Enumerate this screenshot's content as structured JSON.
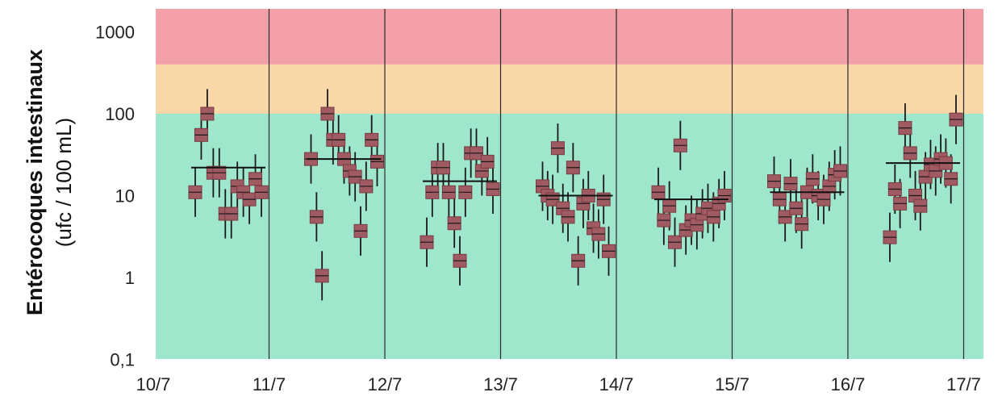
{
  "chart_data": {
    "type": "scatter",
    "title": "",
    "ylabel": "Entérocoques intestinaux",
    "ylabel_unit": "(ufc / 100 mL)",
    "xlabel": "",
    "y_scale": "log",
    "ylim": [
      0.1,
      2000
    ],
    "y_ticks": [
      0.1,
      1,
      10,
      100,
      1000
    ],
    "y_tick_labels": [
      "0,1",
      "1",
      "10",
      "100",
      "1000"
    ],
    "x_ticks": [
      "10/7",
      "11/7",
      "12/7",
      "13/7",
      "14/7",
      "15/7",
      "16/7",
      "17/7"
    ],
    "bands": [
      {
        "name": "green",
        "from": 0.1,
        "to": 100,
        "color": "#9ee6cc"
      },
      {
        "name": "orange",
        "from": 100,
        "to": 400,
        "color": "#f8d8a8"
      },
      {
        "name": "red",
        "from": 400,
        "to": 2000,
        "color": "#f4a0a8"
      }
    ],
    "marker_color": "#a05a62",
    "error_factor": 2,
    "grid": "vertical day separators",
    "legend": "none",
    "days": [
      {
        "day": "10/7",
        "mean": 22,
        "values": [
          11,
          55,
          100,
          19,
          19,
          6,
          6,
          13,
          11,
          9,
          16,
          11
        ]
      },
      {
        "day": "11/7",
        "mean": 28,
        "values": [
          28,
          5.5,
          1.05,
          100,
          48,
          48,
          28,
          20,
          17,
          3.7,
          13,
          48,
          26
        ]
      },
      {
        "day": "12/7",
        "mean": 15,
        "values": [
          2.7,
          11,
          22,
          22,
          11,
          4.6,
          1.6,
          11,
          33,
          33,
          20,
          26,
          12
        ]
      },
      {
        "day": "13/7",
        "mean": 10,
        "values": [
          13,
          10,
          9,
          38,
          7,
          5.5,
          22,
          1.6,
          8,
          10,
          4,
          3.4,
          9,
          2.1
        ]
      },
      {
        "day": "14/7",
        "mean": 9,
        "values": [
          11,
          5,
          7.5,
          2.7,
          41,
          3.8,
          5,
          4.4,
          6,
          7,
          5.5,
          8,
          10
        ]
      },
      {
        "day": "15/7",
        "mean": 11,
        "values": [
          15,
          9,
          5.5,
          14,
          7,
          4.5,
          11,
          16,
          10,
          9,
          13,
          18,
          20
        ]
      },
      {
        "day": "16/7",
        "mean": 25,
        "values": [
          3.1,
          12,
          8,
          67,
          33,
          10,
          7.5,
          17,
          24,
          20,
          28,
          25,
          16,
          85
        ]
      }
    ]
  }
}
